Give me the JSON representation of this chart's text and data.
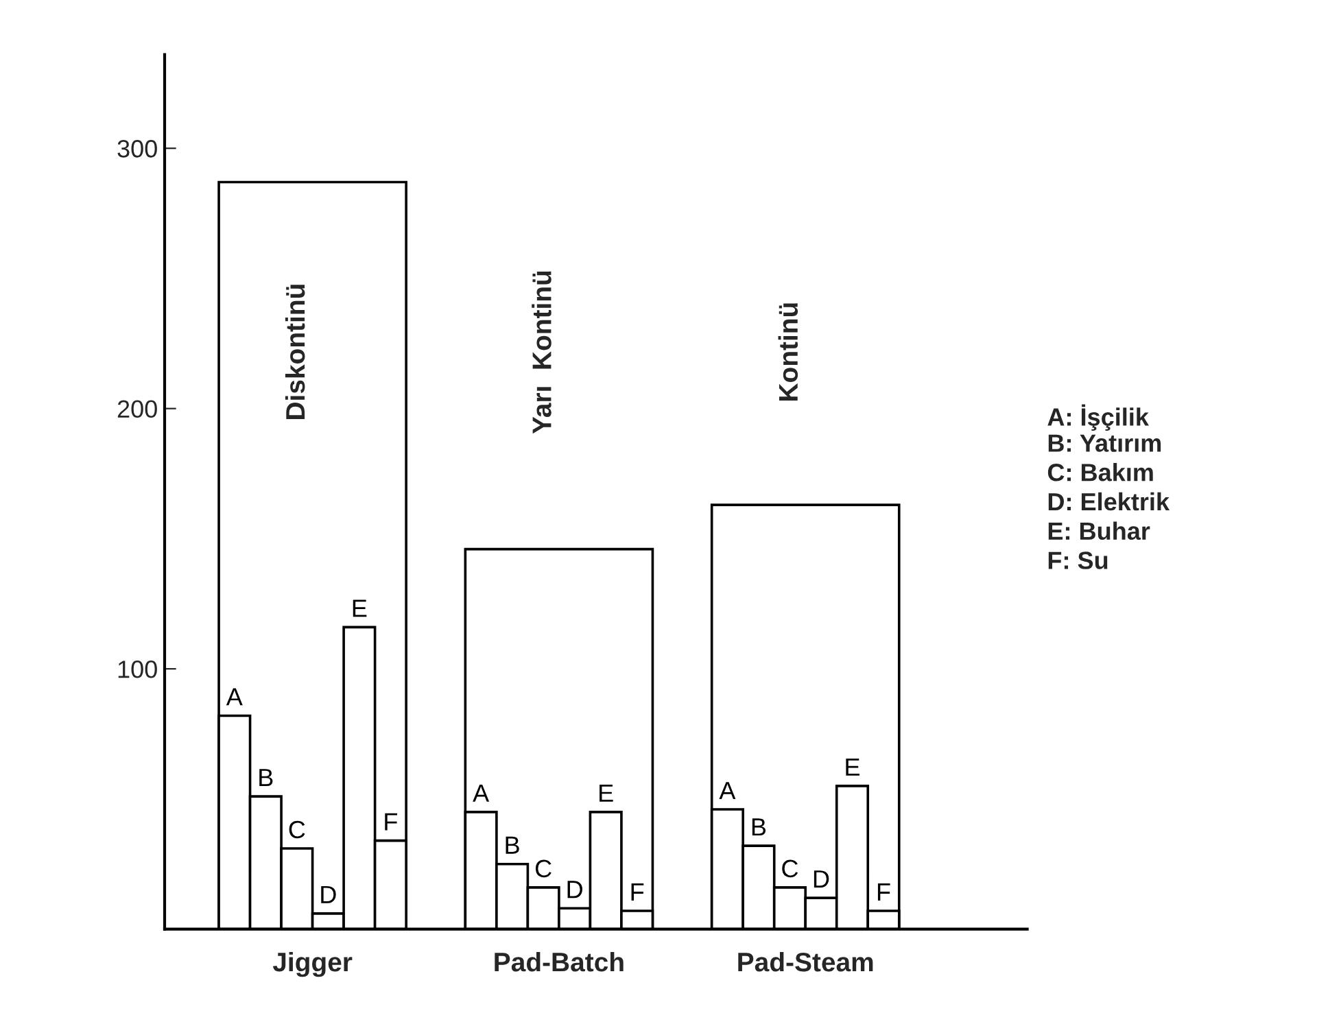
{
  "chart_data": {
    "type": "bar",
    "categories": [
      "Jigger",
      "Pad-Batch",
      "Pad-Steam"
    ],
    "series": [
      {
        "color": "#000000",
        "values": [
          287,
          146,
          163
        ]
      },
      {
        "name": "A",
        "color": "#000000",
        "values": [
          82,
          45,
          46
        ]
      },
      {
        "name": "B",
        "color": "#000000",
        "values": [
          51,
          25,
          32
        ]
      },
      {
        "name": "C",
        "color": "#000000",
        "values": [
          31,
          16,
          16
        ]
      },
      {
        "name": "D",
        "color": "#000000",
        "values": [
          6,
          8,
          12
        ]
      },
      {
        "name": "E",
        "color": "#000000",
        "values": [
          116,
          45,
          55
        ]
      },
      {
        "name": "F",
        "color": "#000000",
        "values": [
          34,
          7,
          7
        ]
      }
    ],
    "ylim": [
      0,
      336
    ],
    "yticks": [
      100,
      200,
      300
    ],
    "grid": false,
    "legend": false,
    "annotations": [
      "Diskontinü",
      "Yarı  Kontinü",
      "Kontinü",
      "A: İşçilik",
      "B: Yatırım",
      "C: Bakım",
      "D: Elektrik",
      "E: Buhar",
      "F: Su"
    ]
  }
}
